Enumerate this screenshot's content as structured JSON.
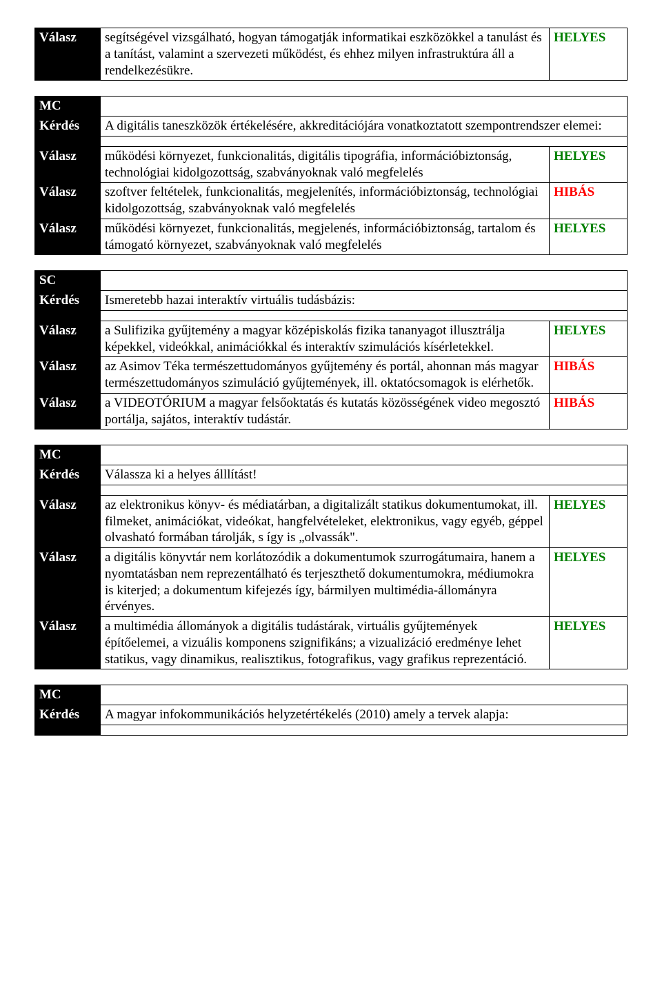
{
  "colors": {
    "helyes": "#008000",
    "hibas": "#ff0000",
    "label_bg": "#000000",
    "label_fg": "#ffffff"
  },
  "labels": {
    "valasz": "Válasz",
    "kerdes": "Kérdés",
    "mc": "MC",
    "sc": "SC"
  },
  "status": {
    "helyes": "HELYES",
    "hibas": "HIBÁS"
  },
  "block0": {
    "answer": "segítségével vizsgálható, hogyan támogatják informatikai eszközökkel a tanulást és a tanítást, valamint a szervezeti működést, és ehhez milyen infrastruktúra áll a rendelkezésükre.",
    "status": "HELYES"
  },
  "block1": {
    "type": "MC",
    "question": "A digitális taneszközök értékelésére, akkreditációjára vonatkoztatott szempontrendszer elemei:",
    "answers": [
      {
        "text": "működési környezet, funkcionalitás, digitális tipográfia, információbiztonság, technológiai kidolgozottság, szabványoknak való megfelelés",
        "status": "HELYES"
      },
      {
        "text": "szoftver feltételek, funkcionalitás, megjelenítés, információbiztonság, technológiai kidolgozottság, szabványoknak való megfelelés",
        "status": "HIBÁS"
      },
      {
        "text": "működési környezet, funkcionalitás, megjelenés, információbiztonság, tartalom és támogató környezet,  szabványoknak való megfelelés",
        "status": "HELYES"
      }
    ]
  },
  "block2": {
    "type": "SC",
    "question": "Ismeretebb hazai interaktív virtuális tudásbázis:",
    "answers": [
      {
        "text": "a Sulifizika gyűjtemény a magyar középiskolás fizika tananyagot illusztrálja képekkel, videókkal, animációkkal és interaktív szimulációs kísérletekkel.",
        "status": "HELYES"
      },
      {
        "text": "az Asimov Téka természettudományos gyűjtemény és portál, ahonnan más magyar természettudományos szimuláció gyűjtemények, ill. oktatócsomagok is elérhetők.",
        "status": "HIBÁS"
      },
      {
        "text": "a VIDEOTÓRIUM a magyar felsőoktatás és kutatás közösségének video megosztó portálja, sajátos, interaktív tudástár.",
        "status": "HIBÁS"
      }
    ]
  },
  "block3": {
    "type": "MC",
    "question": "Válassza ki a helyes álllítást!",
    "answers": [
      {
        "text": "az elektronikus könyv- és médiatárban, a digitalizált statikus dokumentumokat, ill. filmeket, animációkat, videókat, hangfelvételeket, elektronikus, vagy egyéb, géppel olvasható formában tárolják, s így is „olvassák\".",
        "status": "HELYES"
      },
      {
        "text": "a digitális könyvtár nem korlátozódik a dokumentumok szurrogátumaira, hanem a nyomtatásban nem reprezentálható és terjeszthető dokumentumokra, médiumokra is kiterjed; a dokumentum kifejezés így, bármilyen multimédia-állományra érvényes.",
        "status": "HELYES"
      },
      {
        "text": "a multimédia állományok a digitális tudástárak, virtuális gyűjtemények építőelemei, a vizuális komponens szignifikáns; a vizualizáció eredménye lehet statikus, vagy dinamikus, realisztikus, fotografikus, vagy grafikus reprezentáció.",
        "status": "HELYES"
      }
    ]
  },
  "block4": {
    "type": "MC",
    "question": "A magyar infokommunikációs helyzetértékelés (2010) amely a tervek alapja:"
  }
}
